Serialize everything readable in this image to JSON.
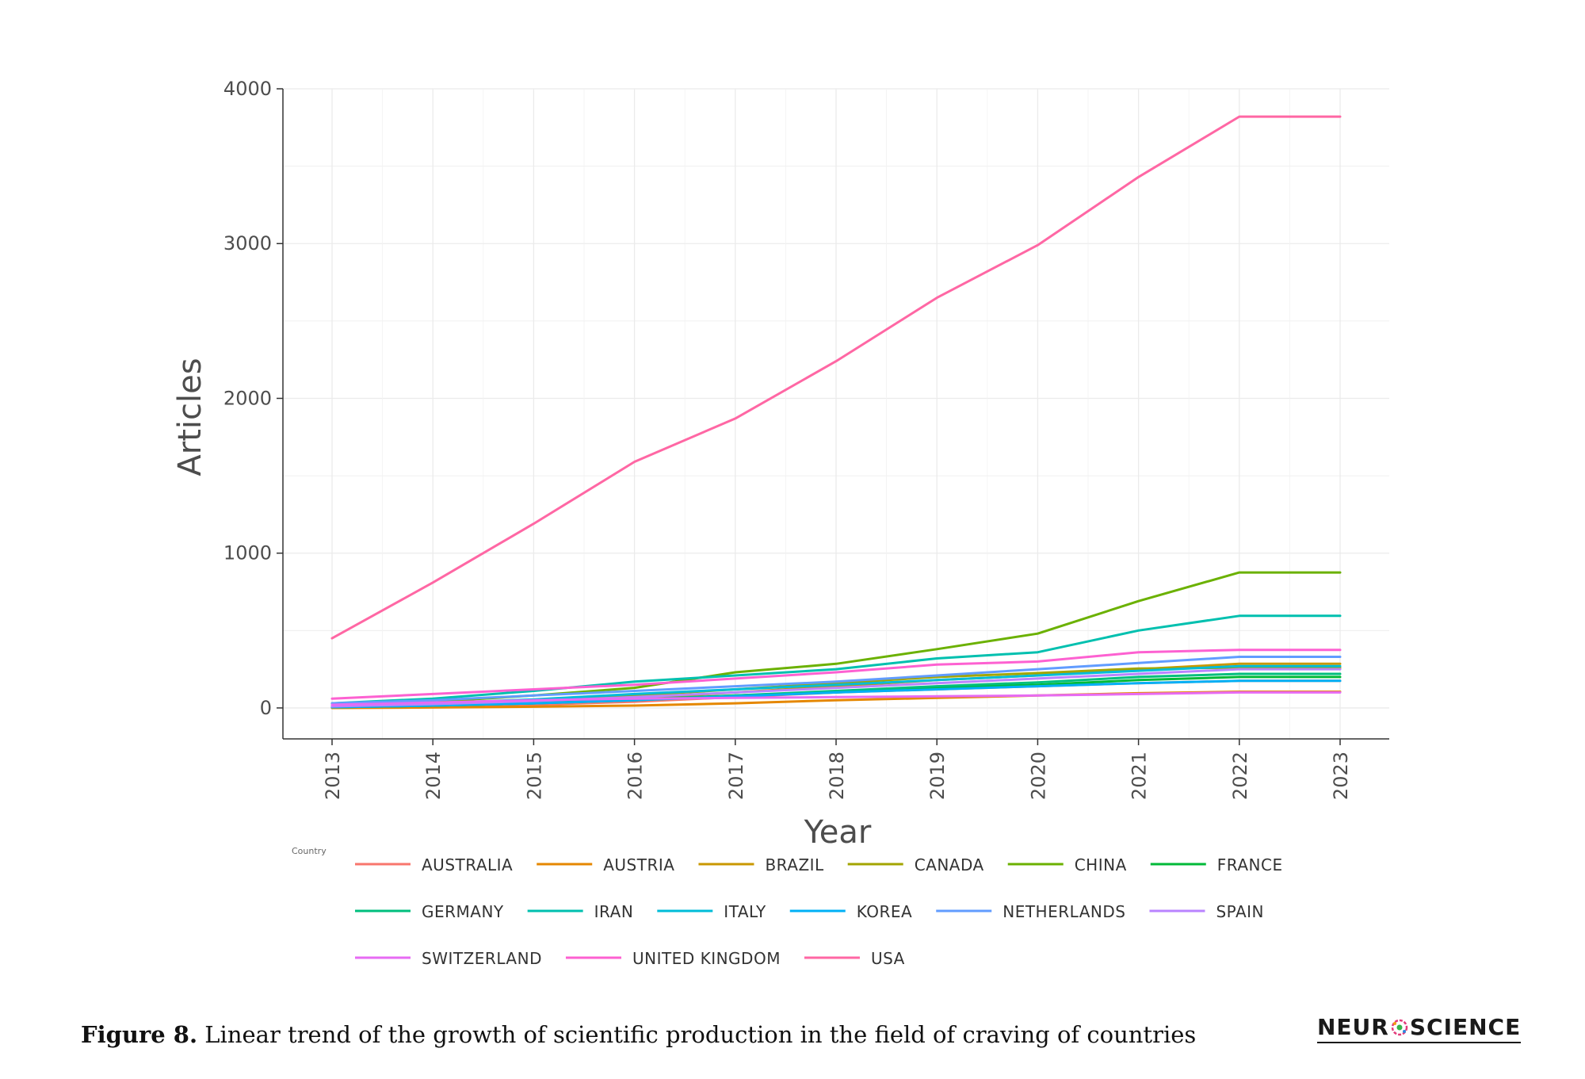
{
  "chart_data": {
    "type": "line",
    "title": "",
    "xlabel": "Year",
    "ylabel": "Articles",
    "x": [
      2013,
      2014,
      2015,
      2016,
      2017,
      2018,
      2019,
      2020,
      2021,
      2022,
      2023
    ],
    "ylim": [
      -200,
      4000
    ],
    "yticks": [
      0,
      1000,
      2000,
      3000,
      4000
    ],
    "grid": true,
    "legend_title": "Country",
    "legend_position": "bottom",
    "series": [
      {
        "name": "AUSTRALIA",
        "color": "#F8766D",
        "values": [
          5,
          10,
          20,
          40,
          70,
          100,
          120,
          140,
          160,
          175,
          175
        ]
      },
      {
        "name": "AUSTRIA",
        "color": "#E58700",
        "values": [
          0,
          3,
          8,
          15,
          30,
          50,
          65,
          80,
          95,
          105,
          105
        ]
      },
      {
        "name": "BRAZIL",
        "color": "#C99800",
        "values": [
          5,
          15,
          30,
          60,
          100,
          140,
          180,
          210,
          250,
          285,
          285
        ]
      },
      {
        "name": "CANADA",
        "color": "#A3A500",
        "values": [
          10,
          25,
          45,
          80,
          120,
          160,
          200,
          225,
          255,
          260,
          260
        ]
      },
      {
        "name": "CHINA",
        "color": "#6BB100",
        "values": [
          10,
          40,
          80,
          130,
          230,
          285,
          380,
          480,
          690,
          875,
          875
        ]
      },
      {
        "name": "FRANCE",
        "color": "#00BA38",
        "values": [
          5,
          15,
          30,
          50,
          80,
          100,
          130,
          150,
          180,
          200,
          200
        ]
      },
      {
        "name": "GERMANY",
        "color": "#00BF7D",
        "values": [
          5,
          15,
          30,
          55,
          80,
          110,
          140,
          165,
          200,
          220,
          220
        ]
      },
      {
        "name": "IRAN",
        "color": "#00C0AF",
        "values": [
          30,
          60,
          110,
          170,
          210,
          250,
          320,
          360,
          500,
          595,
          595
        ]
      },
      {
        "name": "ITALY",
        "color": "#00BCD8",
        "values": [
          10,
          30,
          55,
          90,
          120,
          150,
          180,
          210,
          240,
          270,
          270
        ]
      },
      {
        "name": "KOREA",
        "color": "#00B0F6",
        "values": [
          5,
          15,
          30,
          50,
          75,
          100,
          120,
          140,
          160,
          175,
          175
        ]
      },
      {
        "name": "NETHERLANDS",
        "color": "#619CFF",
        "values": [
          30,
          50,
          80,
          110,
          140,
          170,
          210,
          250,
          290,
          330,
          330
        ]
      },
      {
        "name": "SPAIN",
        "color": "#B983FF",
        "values": [
          10,
          25,
          45,
          70,
          100,
          130,
          160,
          190,
          220,
          250,
          250
        ]
      },
      {
        "name": "SWITZERLAND",
        "color": "#E76BF3",
        "values": [
          20,
          35,
          50,
          60,
          65,
          70,
          75,
          80,
          90,
          100,
          100
        ]
      },
      {
        "name": "UNITED KINGDOM",
        "color": "#FD61D1",
        "values": [
          60,
          90,
          120,
          150,
          190,
          230,
          280,
          300,
          360,
          375,
          375
        ]
      },
      {
        "name": "USA",
        "color": "#FF67A4",
        "values": [
          450,
          810,
          1190,
          1590,
          1870,
          2240,
          2650,
          2990,
          3430,
          3820,
          3820
        ]
      }
    ]
  },
  "caption": {
    "label": "Figure 8.",
    "text": " Linear trend of the growth of scientific production in the field of craving of countries"
  },
  "logo": {
    "left": "NEUR",
    "right": "SCIENCE"
  }
}
